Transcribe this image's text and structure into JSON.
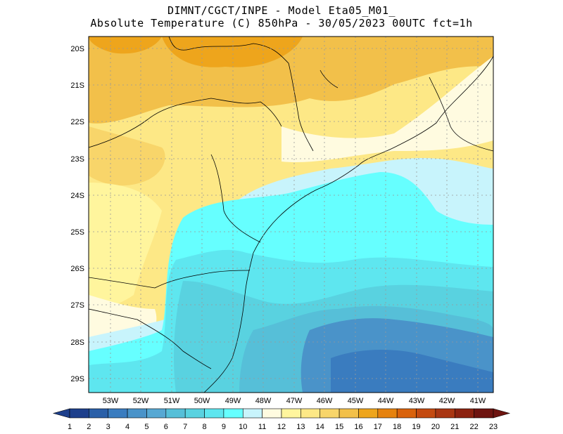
{
  "title": {
    "line1": "DIMNT/CGCT/INPE -  Model Eta05_M01_",
    "line2": "Absolute Temperature (C) 850hPa -  30/05/2023 00UTC fct=1h"
  },
  "map": {
    "lat_labels": [
      "20S",
      "21S",
      "22S",
      "23S",
      "24S",
      "25S",
      "26S",
      "27S",
      "28S",
      "29S"
    ],
    "lon_labels": [
      "53W",
      "52W",
      "51W",
      "50W",
      "49W",
      "48W",
      "47W",
      "46W",
      "45W",
      "44W",
      "43W",
      "42W",
      "41W"
    ],
    "lat_range": [
      -29.4,
      -19.8
    ],
    "lon_range": [
      -53.8,
      -40.6
    ],
    "grid": "dotted",
    "features": [
      "coastline",
      "state-borders"
    ]
  },
  "colorbar": {
    "labels": [
      "1",
      "2",
      "3",
      "4",
      "5",
      "6",
      "7",
      "8",
      "9",
      "10",
      "11",
      "12",
      "13",
      "14",
      "15",
      "16",
      "17",
      "18",
      "19",
      "20",
      "21",
      "22",
      "23"
    ],
    "colors": [
      "#1d3f8c",
      "#2a5fa8",
      "#3a7cbf",
      "#4a93c9",
      "#57a8d3",
      "#56bfd8",
      "#59d2e0",
      "#5ee6ef",
      "#66ffff",
      "#c8f4fc",
      "#fffbe0",
      "#fff59d",
      "#fde886",
      "#f8d56a",
      "#f2c04a",
      "#eea51c",
      "#e6820e",
      "#d9620c",
      "#c44a10",
      "#a93612",
      "#8c2210",
      "#6e1410"
    ]
  },
  "chart_data": {
    "type": "heatmap",
    "variable": "Absolute Temperature (C) 850hPa",
    "x_ticks": [
      "53W",
      "52W",
      "51W",
      "50W",
      "49W",
      "48W",
      "47W",
      "46W",
      "45W",
      "44W",
      "43W",
      "42W",
      "41W"
    ],
    "y_ticks": [
      "20S",
      "21S",
      "22S",
      "23S",
      "24S",
      "25S",
      "26S",
      "27S",
      "28S",
      "29S"
    ],
    "colorbar_range": [
      1,
      23
    ]
  }
}
